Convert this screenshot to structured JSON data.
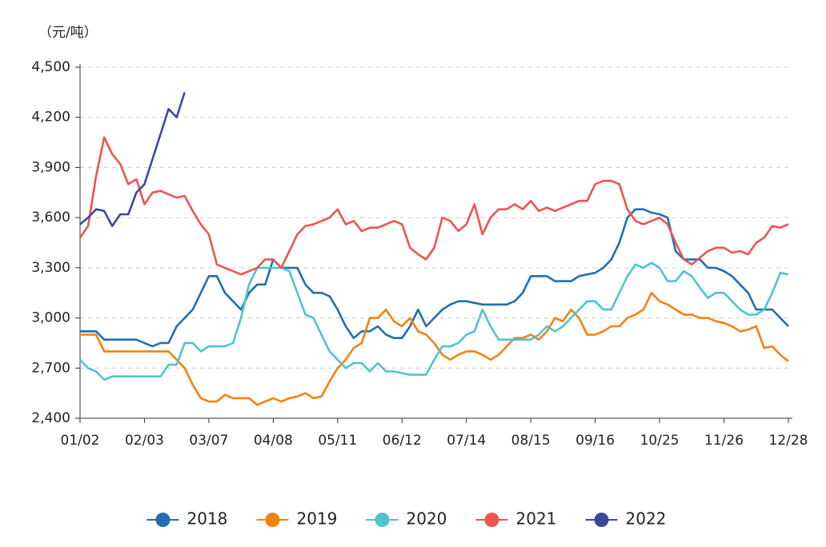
{
  "chart_data": {
    "type": "line",
    "y_label": "（元/吨）",
    "categories": [
      "01/02",
      null,
      null,
      null,
      null,
      null,
      null,
      null,
      "02/03",
      null,
      null,
      null,
      null,
      null,
      null,
      null,
      "03/07",
      null,
      null,
      null,
      null,
      null,
      null,
      null,
      "04/08",
      null,
      null,
      null,
      null,
      null,
      null,
      null,
      "05/11",
      null,
      null,
      null,
      null,
      null,
      null,
      null,
      "06/12",
      null,
      null,
      null,
      null,
      null,
      null,
      null,
      "07/14",
      null,
      null,
      null,
      null,
      null,
      null,
      null,
      "08/15",
      null,
      null,
      null,
      null,
      null,
      null,
      null,
      "09/16",
      null,
      null,
      null,
      null,
      null,
      null,
      null,
      "10/25",
      null,
      null,
      null,
      null,
      null,
      null,
      null,
      "11/26",
      null,
      null,
      null,
      null,
      null,
      null,
      null,
      "12/28"
    ],
    "series": [
      {
        "name": "2018",
        "color": "#1f6fb2",
        "values": [
          2920,
          2920,
          2920,
          2870,
          2870,
          2870,
          2870,
          2870,
          2850,
          2830,
          2850,
          2850,
          2950,
          3000,
          3050,
          3150,
          3250,
          3250,
          3150,
          3100,
          3050,
          3150,
          3200,
          3200,
          3350,
          3300,
          3300,
          3300,
          3200,
          3150,
          3150,
          3130,
          3050,
          2950,
          2880,
          2920,
          2920,
          2950,
          2900,
          2880,
          2880,
          2950,
          3050,
          2950,
          3000,
          3050,
          3080,
          3100,
          3100,
          3090,
          3080,
          3080,
          3080,
          3080,
          3100,
          3150,
          3250,
          3250,
          3250,
          3220,
          3220,
          3220,
          3250,
          3260,
          3270,
          3300,
          3350,
          3450,
          3600,
          3650,
          3650,
          3630,
          3620,
          3600,
          3400,
          3350,
          3350,
          3350,
          3300,
          3300,
          3280,
          3250,
          3200,
          3150,
          3050,
          3050,
          3050,
          3000,
          2950
        ]
      },
      {
        "name": "2019",
        "color": "#f5820d",
        "values": [
          2900,
          2900,
          2900,
          2800,
          2800,
          2800,
          2800,
          2800,
          2800,
          2800,
          2800,
          2800,
          2750,
          2700,
          2600,
          2520,
          2500,
          2500,
          2540,
          2520,
          2520,
          2520,
          2480,
          2500,
          2520,
          2500,
          2520,
          2530,
          2550,
          2520,
          2530,
          2620,
          2700,
          2750,
          2820,
          2850,
          3000,
          3000,
          3050,
          2980,
          2950,
          3000,
          2920,
          2900,
          2850,
          2780,
          2750,
          2780,
          2800,
          2800,
          2780,
          2750,
          2780,
          2830,
          2880,
          2880,
          2900,
          2870,
          2920,
          3000,
          2980,
          3050,
          3000,
          2900,
          2900,
          2920,
          2950,
          2950,
          3000,
          3020,
          3050,
          3150,
          3100,
          3080,
          3050,
          3020,
          3020,
          3000,
          3000,
          2980,
          2970,
          2950,
          2920,
          2930,
          2950,
          2820,
          2830,
          2780,
          2740
        ]
      },
      {
        "name": "2020",
        "color": "#4fc3d0",
        "values": [
          2750,
          2700,
          2680,
          2630,
          2650,
          2650,
          2650,
          2650,
          2650,
          2650,
          2650,
          2720,
          2720,
          2850,
          2850,
          2800,
          2830,
          2830,
          2830,
          2850,
          3000,
          3200,
          3300,
          3300,
          3300,
          3300,
          3280,
          3150,
          3020,
          3000,
          2900,
          2800,
          2750,
          2700,
          2730,
          2730,
          2680,
          2730,
          2680,
          2680,
          2670,
          2660,
          2660,
          2660,
          2750,
          2830,
          2830,
          2850,
          2900,
          2920,
          3050,
          2950,
          2870,
          2870,
          2870,
          2870,
          2870,
          2900,
          2950,
          2920,
          2950,
          3000,
          3050,
          3100,
          3100,
          3050,
          3050,
          3150,
          3250,
          3320,
          3300,
          3330,
          3300,
          3220,
          3220,
          3280,
          3250,
          3180,
          3120,
          3150,
          3150,
          3100,
          3050,
          3020,
          3020,
          3050,
          3150,
          3270,
          3260
        ]
      },
      {
        "name": "2021",
        "color": "#ef5350",
        "values": [
          3480,
          3550,
          3850,
          4080,
          3980,
          3920,
          3800,
          3830,
          3680,
          3750,
          3760,
          3740,
          3720,
          3730,
          3640,
          3560,
          3500,
          3320,
          3300,
          3280,
          3260,
          3280,
          3300,
          3350,
          3350,
          3300,
          3400,
          3500,
          3550,
          3560,
          3580,
          3600,
          3650,
          3560,
          3580,
          3520,
          3540,
          3540,
          3560,
          3580,
          3560,
          3420,
          3380,
          3350,
          3420,
          3600,
          3580,
          3520,
          3560,
          3680,
          3500,
          3600,
          3650,
          3650,
          3680,
          3650,
          3700,
          3640,
          3660,
          3640,
          3660,
          3680,
          3700,
          3700,
          3800,
          3820,
          3820,
          3800,
          3650,
          3580,
          3560,
          3580,
          3600,
          3560,
          3450,
          3350,
          3320,
          3360,
          3400,
          3420,
          3420,
          3390,
          3400,
          3380,
          3450,
          3480,
          3550,
          3540,
          3560
        ]
      },
      {
        "name": "2022",
        "color": "#3949a0",
        "values": [
          3560,
          3600,
          3650,
          3640,
          3550,
          3620,
          3620,
          3750,
          3800,
          3950,
          4100,
          4250,
          4200,
          4350,
          null,
          null,
          null,
          null,
          null,
          null,
          null,
          null,
          null,
          null,
          null,
          null,
          null,
          null,
          null,
          null,
          null,
          null,
          null,
          null,
          null,
          null,
          null,
          null,
          null,
          null,
          null,
          null,
          null,
          null,
          null,
          null,
          null,
          null,
          null,
          null,
          null,
          null,
          null,
          null,
          null,
          null,
          null,
          null,
          null,
          null,
          null,
          null,
          null,
          null,
          null,
          null,
          null,
          null,
          null,
          null,
          null,
          null,
          null,
          null,
          null,
          null,
          null,
          null,
          null,
          null,
          null,
          null,
          null,
          null,
          null,
          null,
          null,
          null,
          null
        ]
      }
    ],
    "ylim": [
      2400,
      4500
    ],
    "yticks": [
      {
        "value": 2400,
        "label": "2,400"
      },
      {
        "value": 2700,
        "label": "2,700"
      },
      {
        "value": 3000,
        "label": "3,000"
      },
      {
        "value": 3300,
        "label": "3,300"
      },
      {
        "value": 3600,
        "label": "3,600"
      },
      {
        "value": 3900,
        "label": "3,900"
      },
      {
        "value": 4200,
        "label": "4,200"
      },
      {
        "value": 4500,
        "label": "4,500"
      }
    ],
    "grid": true,
    "legend": "bottom"
  }
}
